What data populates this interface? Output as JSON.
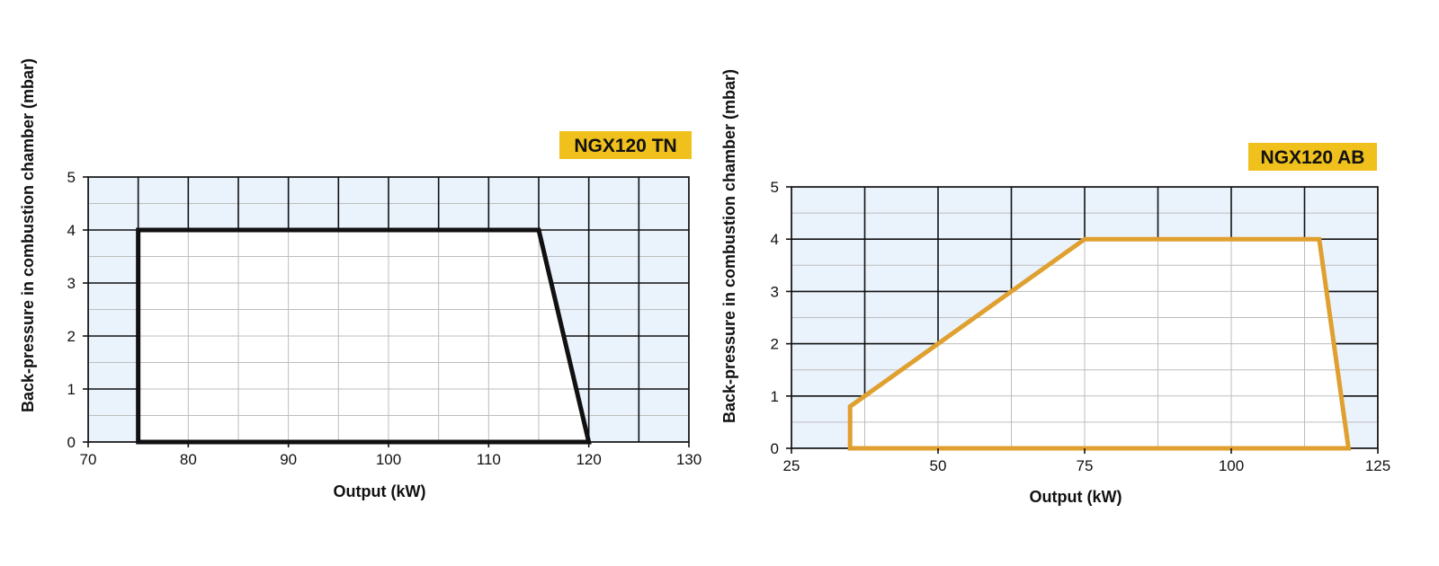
{
  "colors": {
    "plot_background": "#eaf2fc",
    "envelope_fill": "#ffffff",
    "major_grid": "#111111",
    "minor_grid": "#bdbdbd",
    "badge": "#f0c01c"
  },
  "chart_data": [
    {
      "type": "area",
      "title": "NGX120 TN",
      "xlabel": "Output (kW)",
      "ylabel": "Back-pressure in combustion chamber (mbar)",
      "xlim": [
        70,
        130
      ],
      "ylim": [
        0,
        5
      ],
      "xticks": [
        70,
        80,
        90,
        100,
        110,
        120,
        130
      ],
      "yticks": [
        0,
        1,
        2,
        3,
        4,
        5
      ],
      "grid": true,
      "line_color": "#111111",
      "series": [
        {
          "x": [
            75,
            75,
            115,
            120,
            75
          ],
          "y": [
            0,
            4,
            4,
            0,
            0
          ]
        }
      ]
    },
    {
      "type": "area",
      "title": "NGX120 AB",
      "xlabel": "Output (kW)",
      "ylabel": "Back-pressure in combustion chamber (mbar)",
      "xlim": [
        25,
        125
      ],
      "ylim": [
        0,
        5
      ],
      "xticks": [
        25,
        50,
        75,
        100,
        125
      ],
      "yticks": [
        0,
        1,
        2,
        3,
        4,
        5
      ],
      "grid": true,
      "line_color": "#e0a030",
      "series": [
        {
          "x": [
            35,
            35,
            75,
            115,
            120,
            35
          ],
          "y": [
            0,
            0.8,
            4,
            4,
            0,
            0
          ]
        }
      ]
    }
  ]
}
